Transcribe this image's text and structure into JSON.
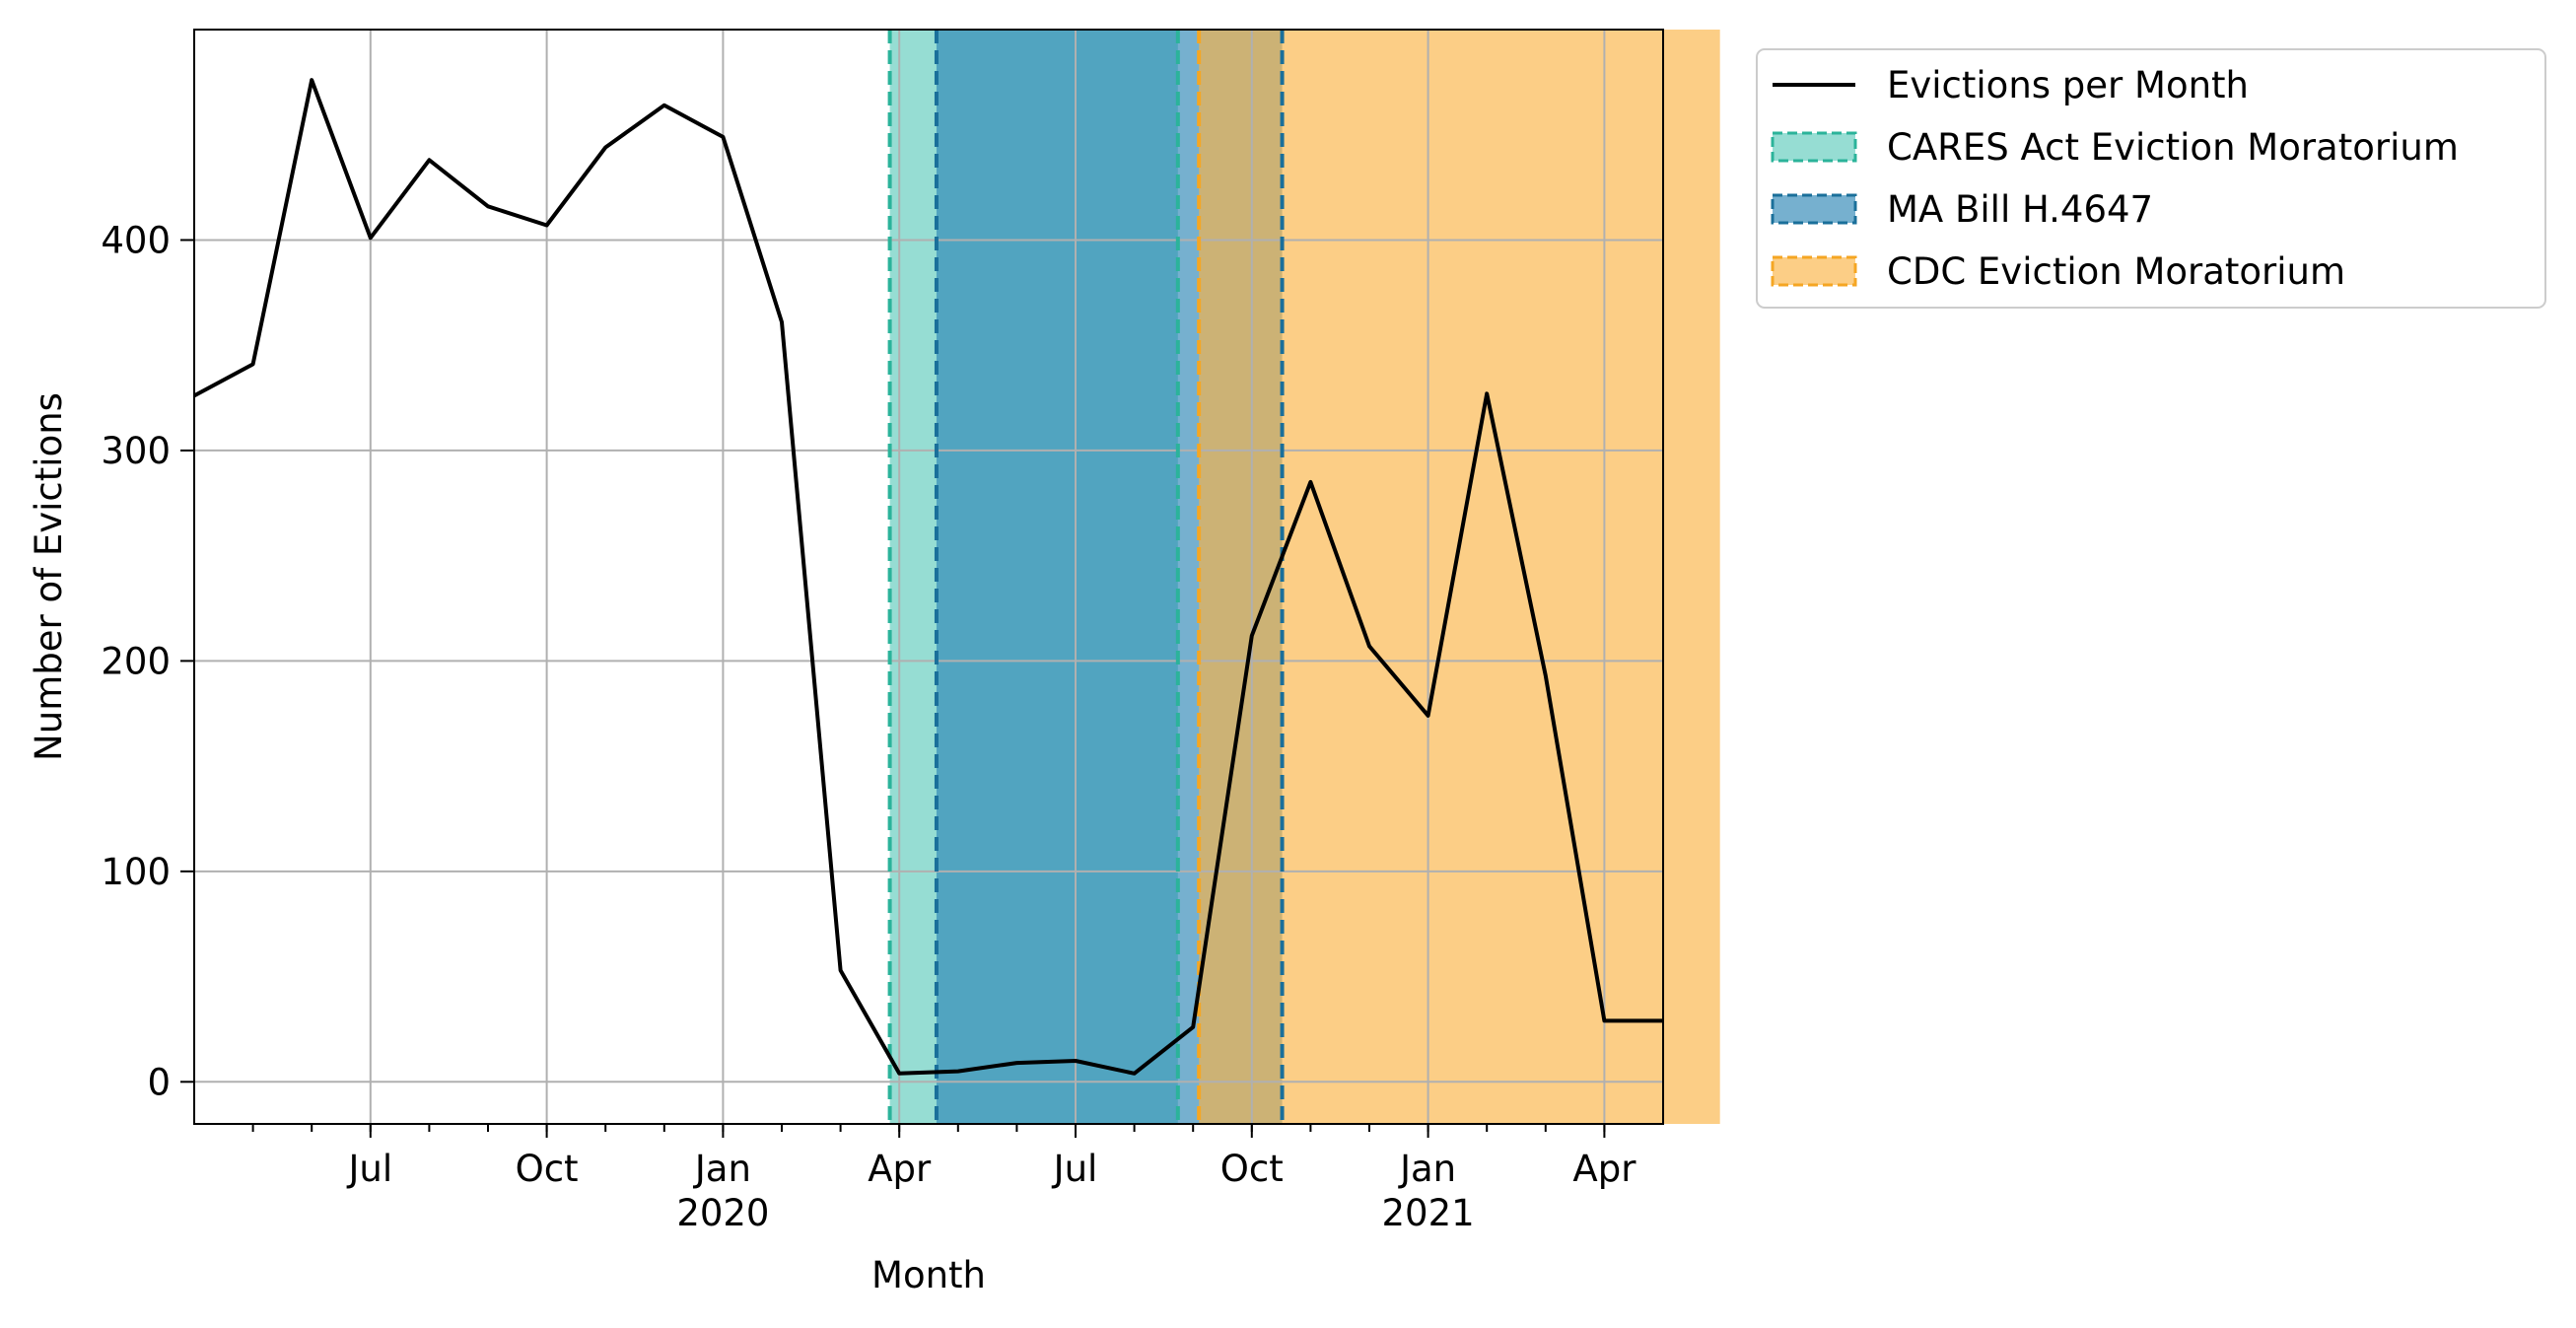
{
  "chart_data": {
    "type": "line",
    "xlabel": "Month",
    "ylabel": "Number of Evictions",
    "xlim": [
      "2019-04",
      "2021-05"
    ],
    "ylim": [
      -20,
      500
    ],
    "grid": true,
    "legend_position": "outside-upper-right",
    "x_ticks": [
      {
        "date": "2019-07",
        "label": "Jul",
        "sublabel": ""
      },
      {
        "date": "2019-10",
        "label": "Oct",
        "sublabel": ""
      },
      {
        "date": "2020-01",
        "label": "Jan",
        "sublabel": "2020"
      },
      {
        "date": "2020-04",
        "label": "Apr",
        "sublabel": ""
      },
      {
        "date": "2020-07",
        "label": "Jul",
        "sublabel": ""
      },
      {
        "date": "2020-10",
        "label": "Oct",
        "sublabel": ""
      },
      {
        "date": "2021-01",
        "label": "Jan",
        "sublabel": "2021"
      },
      {
        "date": "2021-04",
        "label": "Apr",
        "sublabel": ""
      }
    ],
    "y_ticks": [
      0,
      100,
      200,
      300,
      400
    ],
    "series": [
      {
        "name": "Evictions per Month",
        "color": "#000000",
        "x": [
          "2019-04",
          "2019-05",
          "2019-06",
          "2019-07",
          "2019-08",
          "2019-09",
          "2019-10",
          "2019-11",
          "2019-12",
          "2020-01",
          "2020-02",
          "2020-03",
          "2020-04",
          "2020-05",
          "2020-06",
          "2020-07",
          "2020-08",
          "2020-09",
          "2020-10",
          "2020-11",
          "2020-12",
          "2021-01",
          "2021-02",
          "2021-03",
          "2021-04",
          "2021-05"
        ],
        "y": [
          326,
          341,
          476,
          401,
          438,
          416,
          407,
          444,
          464,
          449,
          361,
          53,
          4,
          5,
          9,
          10,
          4,
          26,
          212,
          285,
          207,
          174,
          327,
          193,
          29,
          29
        ]
      }
    ],
    "shaded_periods": [
      {
        "name": "CARES Act Eviction Moratorium",
        "start": "2020-03-27",
        "end": "2020-08-24",
        "color": "#5ecbbb",
        "edge_color": "#2bb39a"
      },
      {
        "name": "MA Bill H.4647",
        "start": "2020-04-20",
        "end": "2020-10-17",
        "color": "#2c86b5",
        "edge_color": "#1a6f9a"
      },
      {
        "name": "CDC Eviction Moratorium",
        "start": "2020-09-04",
        "end": "2021-05-31",
        "color": "#fbb345",
        "edge_color": "#f5a623"
      }
    ]
  }
}
